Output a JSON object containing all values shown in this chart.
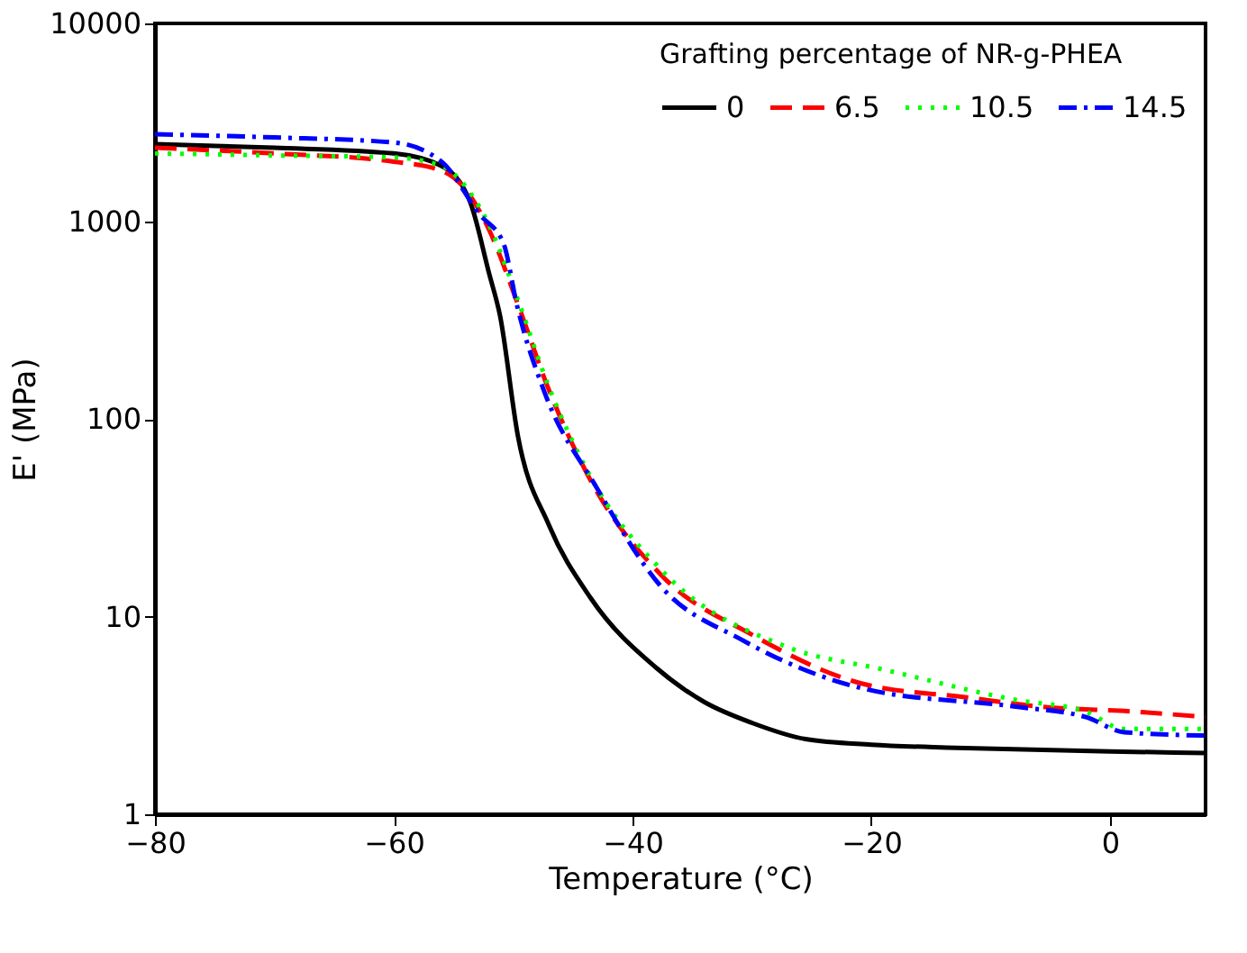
{
  "chart_data": {
    "type": "line",
    "xlabel": "Temperature (°C)",
    "ylabel": "E' (MPa)",
    "legend_title": "Grafting percentage of NR-g-PHEA",
    "legend": "top right",
    "log": "y",
    "grid": false,
    "marker": "none",
    "xlim": [
      -80,
      8
    ],
    "xticks": [
      -80,
      -60,
      -40,
      -20,
      0
    ],
    "ylim": [
      1,
      10000
    ],
    "yticks": [
      1,
      10,
      100,
      1000,
      10000
    ],
    "series": [
      {
        "name": "0",
        "color": "#000000",
        "line_style": "solid",
        "x": [
          -80,
          -70,
          -60,
          -56,
          -53.6,
          -52,
          -51.1,
          -49.6,
          -47,
          -43.5,
          -38,
          -34,
          -30,
          -25.5,
          -20,
          -12.9,
          0,
          8
        ],
        "values": [
          2450,
          2350,
          2200,
          1900,
          1250,
          540,
          333,
          82,
          29,
          12.4,
          5.5,
          3.7,
          2.9,
          2.4,
          2.25,
          2.17,
          2.08,
          2.04
        ]
      },
      {
        "name": "6.5",
        "color": "#ff0000",
        "line_style": "dashed",
        "x": [
          -80,
          -70,
          -60,
          -56,
          -54,
          -52,
          -49.6,
          -47.1,
          -43.6,
          -37.5,
          -30,
          -20.9,
          -12,
          -5.8,
          2.3,
          8
        ],
        "values": [
          2350,
          2200,
          2000,
          1800,
          1450,
          900,
          380,
          145,
          50,
          16,
          8.1,
          4.6,
          3.9,
          3.5,
          3.3,
          3.1
        ]
      },
      {
        "name": "10.5",
        "color": "#00ff00",
        "line_style": "dotted",
        "x": [
          -80,
          -70,
          -60,
          -56,
          -54,
          -52,
          -49.6,
          -47.1,
          -43.6,
          -37.5,
          -27,
          -19,
          -8,
          -2,
          1.2,
          8
        ],
        "values": [
          2200,
          2150,
          2100,
          1900,
          1500,
          950,
          400,
          150,
          52,
          17,
          7,
          5.4,
          3.8,
          3.3,
          2.7,
          2.7
        ]
      },
      {
        "name": "14.5",
        "color": "#0000ff",
        "line_style": "dashdot",
        "x": [
          -80,
          -70,
          -60,
          -56,
          -52.8,
          -50.8,
          -49.7,
          -47.3,
          -43.2,
          -37.7,
          -30.8,
          -20.5,
          -7.9,
          -2,
          1.2,
          8
        ],
        "values": [
          2750,
          2650,
          2500,
          2000,
          1080,
          770,
          380,
          133,
          47,
          14.4,
          7.6,
          4.3,
          3.5,
          3.1,
          2.6,
          2.5
        ]
      }
    ]
  }
}
